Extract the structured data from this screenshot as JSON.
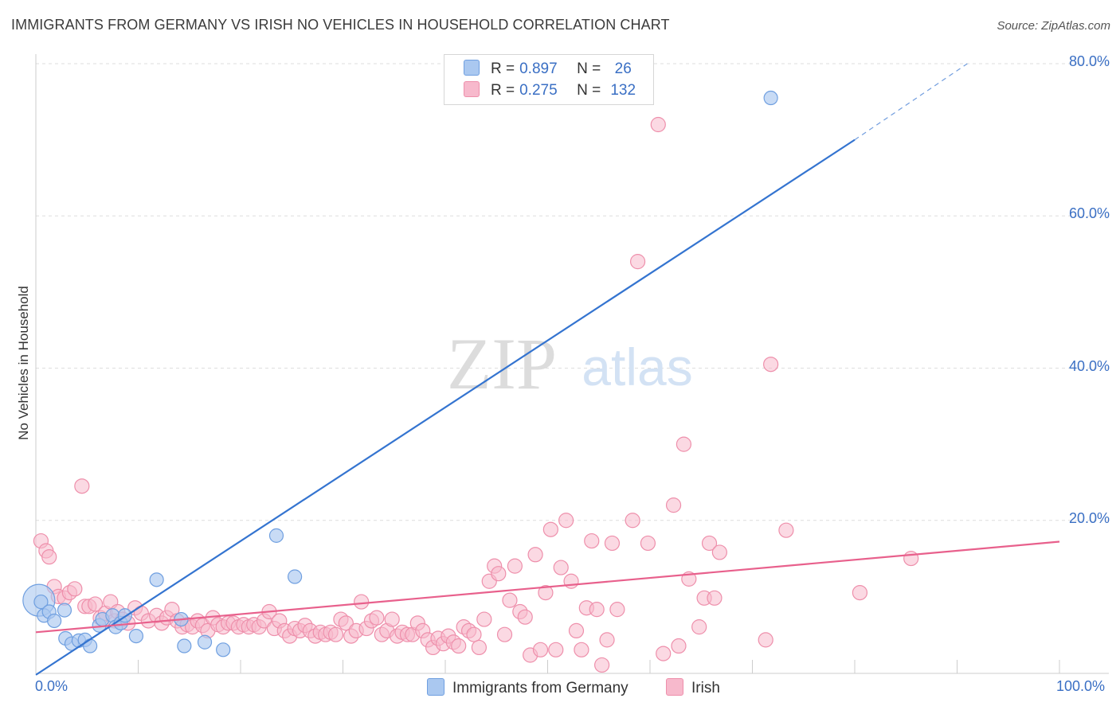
{
  "title": "IMMIGRANTS FROM GERMANY VS IRISH NO VEHICLES IN HOUSEHOLD CORRELATION CHART",
  "source": "Source: ZipAtlas.com",
  "watermark": {
    "zip": "ZIP",
    "atlas": "atlas"
  },
  "legend": {
    "rows": [
      {
        "r_label": "R =",
        "r_value": "0.897",
        "n_label": "N =",
        "n_value": "26",
        "color": "#aac8f0"
      },
      {
        "r_label": "R =",
        "r_value": "0.275",
        "n_label": "N =",
        "n_value": "132",
        "color": "#f7b9cc"
      }
    ]
  },
  "bottom_legend": [
    {
      "label": "Immigrants from Germany",
      "color": "#aac8f0"
    },
    {
      "label": "Irish",
      "color": "#f7b9cc"
    }
  ],
  "chart_data": {
    "type": "scatter",
    "ylabel": "No Vehicles in Household",
    "xlim": [
      0,
      100
    ],
    "ylim": [
      0,
      80
    ],
    "x_tick_labels": [
      "0.0%",
      "100.0%"
    ],
    "y_ticks": [
      20,
      40,
      60,
      80
    ],
    "y_tick_labels": [
      "20.0%",
      "40.0%",
      "60.0%",
      "80.0%"
    ],
    "grid": "horizontal dashed",
    "legend_position": "top-center",
    "series": [
      {
        "name": "Immigrants from Germany",
        "color": "#aac8f0",
        "stroke": "#6f9fe0",
        "line_color": "#3474d0",
        "trend": {
          "x0": 0,
          "y0": -0.3,
          "x1": 80,
          "y1": 70.0,
          "dash_to": {
            "x": 91,
            "y": 80
          }
        },
        "points": [
          [
            0.5,
            9.3
          ],
          [
            0.8,
            7.5
          ],
          [
            1.3,
            8.0
          ],
          [
            1.8,
            6.8
          ],
          [
            2.8,
            8.2
          ],
          [
            2.9,
            4.5
          ],
          [
            3.5,
            3.8
          ],
          [
            4.2,
            4.2
          ],
          [
            4.8,
            4.3
          ],
          [
            5.3,
            3.5
          ],
          [
            6.2,
            6.2
          ],
          [
            6.5,
            7.0
          ],
          [
            7.5,
            7.5
          ],
          [
            7.8,
            6.0
          ],
          [
            8.3,
            6.5
          ],
          [
            8.7,
            7.5
          ],
          [
            9.8,
            4.8
          ],
          [
            11.8,
            12.2
          ],
          [
            14.5,
            3.5
          ],
          [
            14.2,
            7.0
          ],
          [
            16.5,
            4.0
          ],
          [
            18.3,
            3.0
          ],
          [
            23.5,
            18.0
          ],
          [
            25.3,
            12.6
          ],
          [
            71.8,
            75.5
          ]
        ],
        "big_point": [
          0.3,
          9.5
        ]
      },
      {
        "name": "Irish",
        "color": "#f7b9cc",
        "stroke": "#ee8fab",
        "line_color": "#e8608c",
        "trend": {
          "x0": 0,
          "y0": 5.3,
          "x1": 100,
          "y1": 17.2
        },
        "points": [
          [
            0.5,
            17.3
          ],
          [
            1.0,
            16.0
          ],
          [
            1.3,
            15.2
          ],
          [
            1.8,
            11.3
          ],
          [
            2.2,
            10.0
          ],
          [
            2.8,
            9.8
          ],
          [
            3.3,
            10.5
          ],
          [
            3.8,
            11.0
          ],
          [
            4.5,
            24.5
          ],
          [
            4.8,
            8.7
          ],
          [
            5.2,
            8.7
          ],
          [
            5.8,
            9.0
          ],
          [
            6.3,
            7.2
          ],
          [
            6.8,
            7.8
          ],
          [
            7.3,
            9.3
          ],
          [
            7.7,
            6.8
          ],
          [
            8.0,
            8.0
          ],
          [
            8.5,
            7.0
          ],
          [
            9.0,
            6.5
          ],
          [
            9.7,
            8.5
          ],
          [
            10.3,
            7.8
          ],
          [
            11.0,
            6.8
          ],
          [
            11.8,
            7.5
          ],
          [
            12.3,
            6.5
          ],
          [
            12.8,
            7.2
          ],
          [
            13.3,
            8.3
          ],
          [
            13.8,
            6.8
          ],
          [
            14.3,
            6.0
          ],
          [
            14.8,
            6.3
          ],
          [
            15.3,
            6.0
          ],
          [
            15.8,
            6.8
          ],
          [
            16.3,
            6.2
          ],
          [
            16.8,
            5.5
          ],
          [
            17.3,
            7.2
          ],
          [
            17.8,
            6.3
          ],
          [
            18.3,
            6.0
          ],
          [
            18.8,
            6.5
          ],
          [
            19.3,
            6.5
          ],
          [
            19.8,
            6.0
          ],
          [
            20.3,
            6.3
          ],
          [
            20.8,
            6.0
          ],
          [
            21.3,
            6.3
          ],
          [
            21.8,
            6.0
          ],
          [
            22.3,
            6.8
          ],
          [
            22.8,
            8.0
          ],
          [
            23.3,
            5.8
          ],
          [
            23.8,
            6.8
          ],
          [
            24.3,
            5.5
          ],
          [
            24.8,
            4.8
          ],
          [
            25.3,
            5.8
          ],
          [
            25.8,
            5.5
          ],
          [
            26.3,
            6.2
          ],
          [
            26.8,
            5.5
          ],
          [
            27.3,
            4.8
          ],
          [
            27.8,
            5.3
          ],
          [
            28.3,
            5.0
          ],
          [
            28.8,
            5.3
          ],
          [
            29.3,
            5.0
          ],
          [
            29.8,
            7.0
          ],
          [
            30.3,
            6.5
          ],
          [
            30.8,
            4.8
          ],
          [
            31.3,
            5.5
          ],
          [
            31.8,
            9.3
          ],
          [
            32.3,
            5.8
          ],
          [
            32.8,
            6.8
          ],
          [
            33.3,
            7.2
          ],
          [
            33.8,
            5.0
          ],
          [
            34.3,
            5.5
          ],
          [
            34.8,
            7.0
          ],
          [
            35.3,
            4.8
          ],
          [
            35.8,
            5.3
          ],
          [
            36.3,
            5.0
          ],
          [
            36.8,
            5.0
          ],
          [
            37.3,
            6.5
          ],
          [
            37.8,
            5.5
          ],
          [
            38.3,
            4.3
          ],
          [
            38.8,
            3.3
          ],
          [
            39.3,
            4.5
          ],
          [
            39.8,
            3.8
          ],
          [
            40.3,
            4.8
          ],
          [
            40.8,
            4.0
          ],
          [
            41.3,
            3.5
          ],
          [
            41.8,
            6.0
          ],
          [
            42.3,
            5.5
          ],
          [
            42.8,
            5.0
          ],
          [
            43.3,
            3.3
          ],
          [
            43.8,
            7.0
          ],
          [
            44.3,
            12.0
          ],
          [
            44.8,
            14.0
          ],
          [
            45.2,
            13.0
          ],
          [
            45.8,
            5.0
          ],
          [
            46.3,
            9.5
          ],
          [
            46.8,
            14.0
          ],
          [
            47.3,
            8.0
          ],
          [
            47.8,
            7.3
          ],
          [
            48.3,
            2.3
          ],
          [
            48.8,
            15.5
          ],
          [
            49.3,
            3.0
          ],
          [
            49.8,
            10.5
          ],
          [
            50.3,
            18.8
          ],
          [
            50.8,
            3.0
          ],
          [
            51.3,
            13.8
          ],
          [
            51.8,
            20.0
          ],
          [
            52.3,
            12.0
          ],
          [
            52.8,
            5.5
          ],
          [
            53.3,
            3.0
          ],
          [
            53.8,
            8.5
          ],
          [
            54.3,
            17.3
          ],
          [
            54.8,
            8.3
          ],
          [
            55.3,
            1.0
          ],
          [
            55.8,
            4.3
          ],
          [
            56.3,
            17.0
          ],
          [
            56.8,
            8.3
          ],
          [
            58.3,
            20.0
          ],
          [
            58.8,
            54.0
          ],
          [
            59.8,
            17.0
          ],
          [
            60.8,
            72.0
          ],
          [
            61.3,
            2.5
          ],
          [
            62.3,
            22.0
          ],
          [
            62.8,
            3.5
          ],
          [
            63.3,
            30.0
          ],
          [
            63.8,
            12.3
          ],
          [
            64.8,
            6.0
          ],
          [
            65.3,
            9.8
          ],
          [
            65.8,
            17.0
          ],
          [
            66.3,
            9.8
          ],
          [
            66.8,
            15.8
          ],
          [
            71.8,
            40.5
          ],
          [
            71.3,
            4.3
          ],
          [
            73.3,
            18.7
          ],
          [
            80.5,
            10.5
          ],
          [
            85.5,
            15.0
          ]
        ]
      }
    ]
  }
}
